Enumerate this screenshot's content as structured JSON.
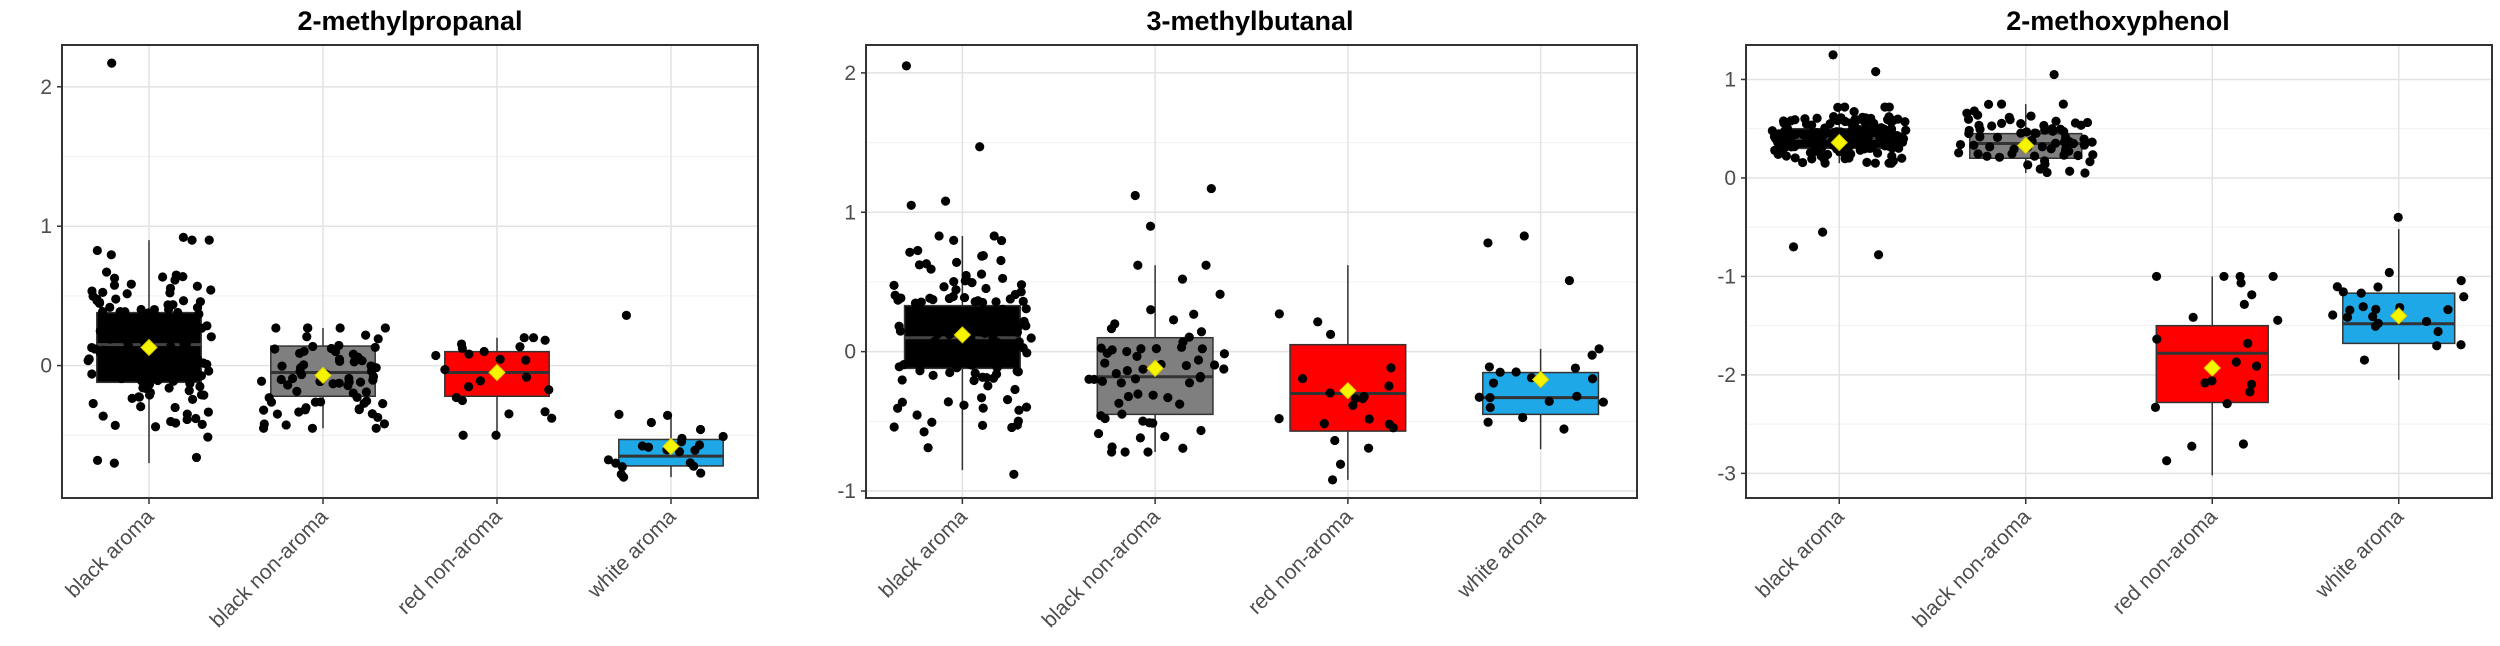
{
  "chart_data": [
    {
      "type": "box",
      "title": "2-methylpropanal",
      "xlabel": "",
      "ylabel": "",
      "ylim": [
        -0.95,
        2.3
      ],
      "yticks": [
        0,
        1,
        2
      ],
      "categories": [
        "black aroma",
        "black non-aroma",
        "red non-aroma",
        "white aroma"
      ],
      "colors": [
        "#000000",
        "#7f7f7f",
        "#ff0000",
        "#1fa8e8"
      ],
      "boxes": [
        {
          "q1": -0.12,
          "median": 0.15,
          "q3": 0.38,
          "whisker_low": -0.7,
          "whisker_high": 0.9,
          "mean": 0.13,
          "n": 150,
          "extra_points": [
            2.17,
            0.92,
            -0.7,
            -0.68
          ]
        },
        {
          "q1": -0.22,
          "median": -0.05,
          "q3": 0.14,
          "whisker_low": -0.45,
          "whisker_high": 0.27,
          "mean": -0.07,
          "n": 70
        },
        {
          "q1": -0.22,
          "median": -0.05,
          "q3": 0.1,
          "whisker_low": -0.5,
          "whisker_high": 0.2,
          "mean": -0.05,
          "n": 24
        },
        {
          "q1": -0.72,
          "median": -0.65,
          "q3": -0.53,
          "whisker_low": -0.8,
          "whisker_high": -0.35,
          "mean": -0.58,
          "n": 22,
          "extra_points": [
            0.36
          ]
        }
      ]
    },
    {
      "type": "box",
      "title": "3-methylbutanal",
      "xlabel": "",
      "ylabel": "",
      "ylim": [
        -1.05,
        2.2
      ],
      "yticks": [
        -1,
        0,
        1,
        2
      ],
      "categories": [
        "black aroma",
        "black non-aroma",
        "red non-aroma",
        "white aroma"
      ],
      "colors": [
        "#000000",
        "#7f7f7f",
        "#ff0000",
        "#1fa8e8"
      ],
      "boxes": [
        {
          "q1": -0.12,
          "median": 0.1,
          "q3": 0.33,
          "whisker_low": -0.85,
          "whisker_high": 0.83,
          "mean": 0.12,
          "n": 150,
          "extra_points": [
            2.05,
            1.47,
            1.08,
            1.05,
            -0.88
          ]
        },
        {
          "q1": -0.45,
          "median": -0.18,
          "q3": 0.1,
          "whisker_low": -0.72,
          "whisker_high": 0.62,
          "mean": -0.12,
          "n": 60,
          "extra_points": [
            1.17,
            1.12,
            0.9
          ]
        },
        {
          "q1": -0.57,
          "median": -0.3,
          "q3": 0.05,
          "whisker_low": -0.92,
          "whisker_high": 0.62,
          "mean": -0.28,
          "n": 20
        },
        {
          "q1": -0.45,
          "median": -0.33,
          "q3": -0.15,
          "whisker_low": -0.7,
          "whisker_high": 0.02,
          "mean": -0.2,
          "n": 18,
          "extra_points": [
            0.83,
            0.78,
            0.51
          ]
        }
      ]
    },
    {
      "type": "box",
      "title": "2-methoxyphenol",
      "xlabel": "",
      "ylabel": "",
      "ylim": [
        -3.25,
        1.35
      ],
      "yticks": [
        -3,
        -2,
        -1,
        0,
        1
      ],
      "categories": [
        "black aroma",
        "black non-aroma",
        "red non-aroma",
        "white aroma"
      ],
      "colors": [
        "#000000",
        "#7f7f7f",
        "#ff0000",
        "#1fa8e8"
      ],
      "boxes": [
        {
          "q1": 0.3,
          "median": 0.4,
          "q3": 0.5,
          "whisker_low": 0.15,
          "whisker_high": 0.72,
          "mean": 0.36,
          "n": 160,
          "extra_points": [
            1.25,
            1.08,
            -0.7,
            -0.78,
            -0.55
          ]
        },
        {
          "q1": 0.2,
          "median": 0.35,
          "q3": 0.45,
          "whisker_low": 0.05,
          "whisker_high": 0.75,
          "mean": 0.33,
          "n": 70,
          "extra_points": [
            1.05
          ]
        },
        {
          "q1": -2.28,
          "median": -1.78,
          "q3": -1.5,
          "whisker_low": -3.02,
          "whisker_high": -1.0,
          "mean": -1.93,
          "n": 22
        },
        {
          "q1": -1.68,
          "median": -1.48,
          "q3": -1.17,
          "whisker_low": -2.05,
          "whisker_high": -0.52,
          "mean": -1.4,
          "n": 22,
          "extra_points": [
            -0.4
          ]
        }
      ]
    }
  ]
}
